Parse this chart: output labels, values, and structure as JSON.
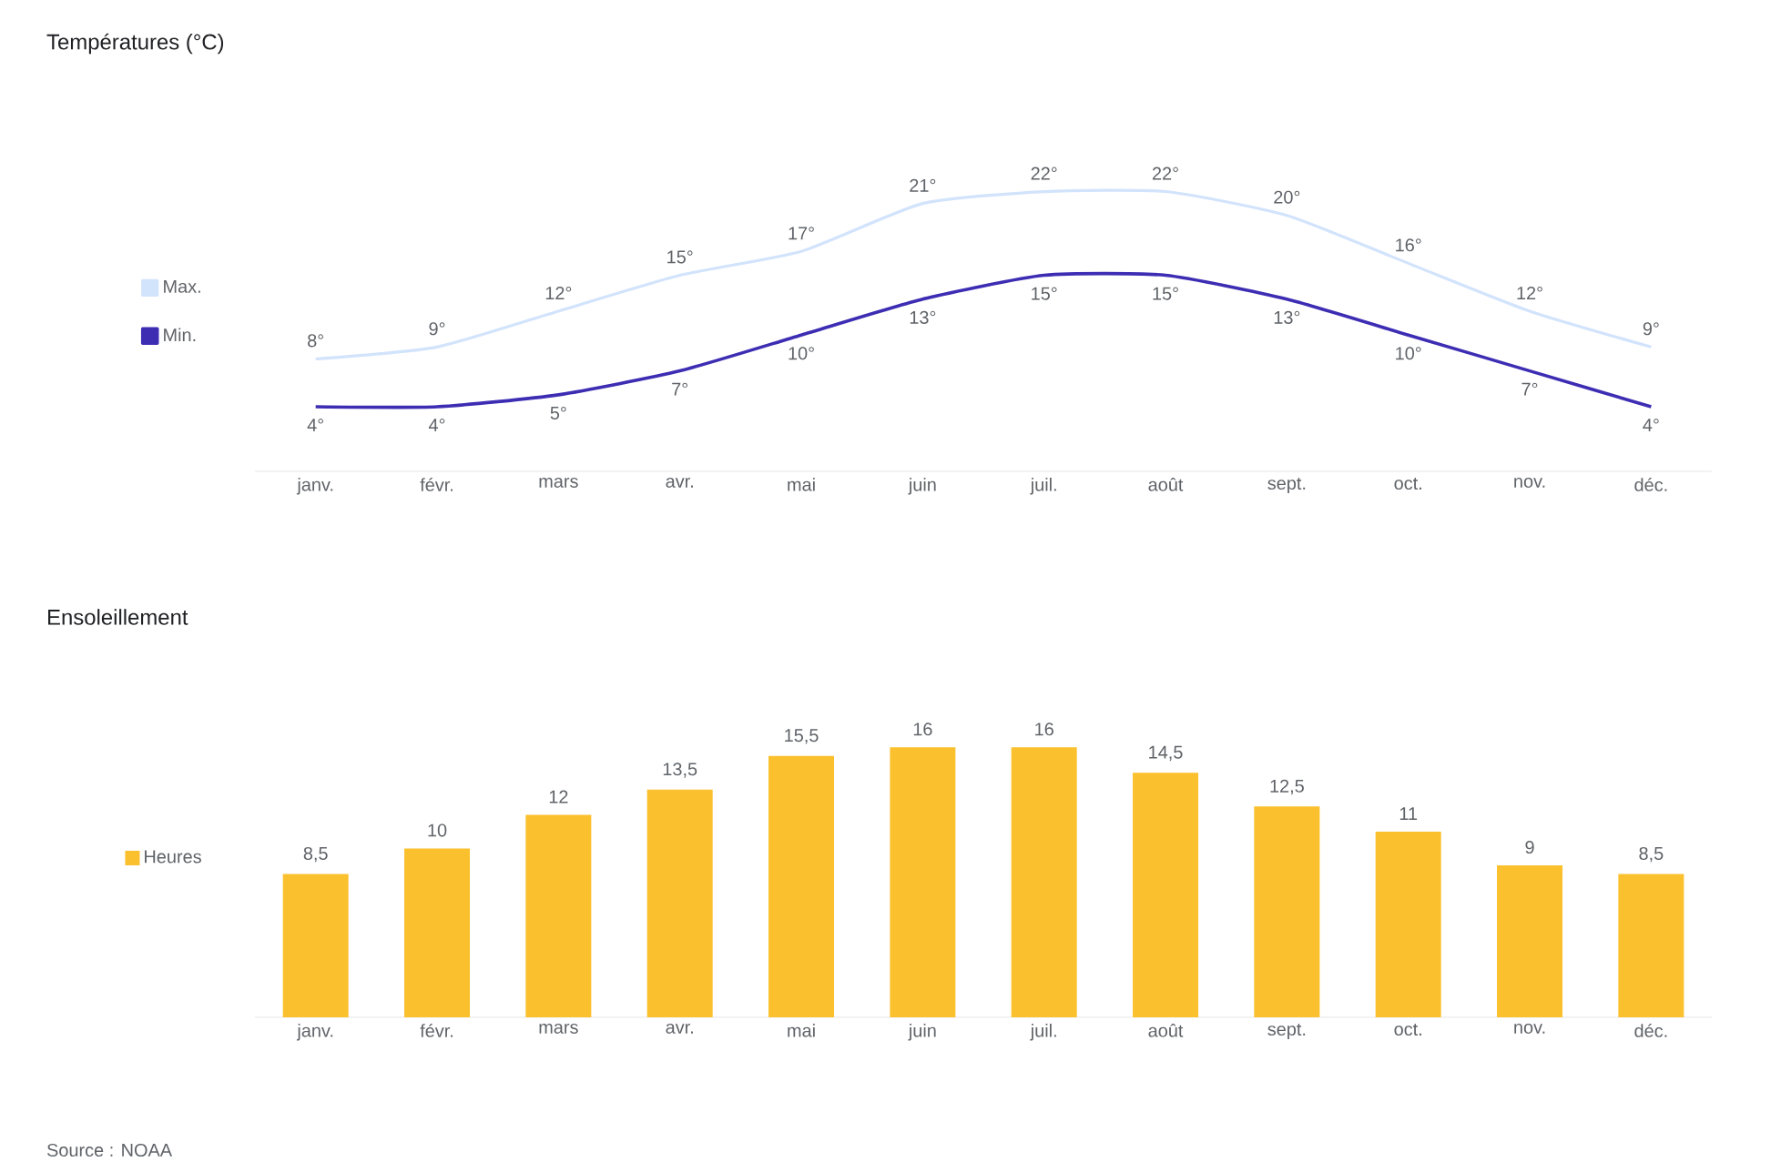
{
  "chart_data": [
    {
      "type": "line",
      "title": "Températures (°C)",
      "categories": [
        "janv.",
        "févr.",
        "mars",
        "avr.",
        "mai",
        "juin",
        "juil.",
        "août",
        "sept.",
        "oct.",
        "nov.",
        "déc."
      ],
      "legend": "left",
      "marker": "none",
      "series": [
        {
          "name": "Max.",
          "color": "#d2e3fc",
          "values": [
            8,
            9,
            12,
            15,
            17,
            21,
            22,
            22,
            20,
            16,
            12,
            9
          ],
          "value_labels": [
            "8°",
            "9°",
            "12°",
            "15°",
            "17°",
            "21°",
            "22°",
            "22°",
            "20°",
            "16°",
            "12°",
            "9°"
          ]
        },
        {
          "name": "Min.",
          "color": "#3d2db3",
          "values": [
            4,
            4,
            5,
            7,
            10,
            13,
            15,
            15,
            13,
            10,
            7,
            4
          ],
          "value_labels": [
            "4°",
            "4°",
            "5°",
            "7°",
            "10°",
            "13°",
            "15°",
            "15°",
            "13°",
            "10°",
            "7°",
            "4°"
          ]
        }
      ]
    },
    {
      "type": "bar",
      "title": "Ensoleillement",
      "categories": [
        "janv.",
        "févr.",
        "mars",
        "avr.",
        "mai",
        "juin",
        "juil.",
        "août",
        "sept.",
        "oct.",
        "nov.",
        "déc."
      ],
      "legend": "left",
      "annotations": [
        "Source : NOAA"
      ],
      "series": [
        {
          "name": "Heures",
          "color": "#fbc02d",
          "values": [
            8.5,
            10,
            12,
            13.5,
            15.5,
            16,
            16,
            14.5,
            12.5,
            11,
            9,
            8.5
          ],
          "value_labels": [
            "8,5",
            "10",
            "12",
            "13,5",
            "15,5",
            "16",
            "16",
            "14,5",
            "12,5",
            "11",
            "9",
            "8,5"
          ]
        }
      ]
    }
  ]
}
